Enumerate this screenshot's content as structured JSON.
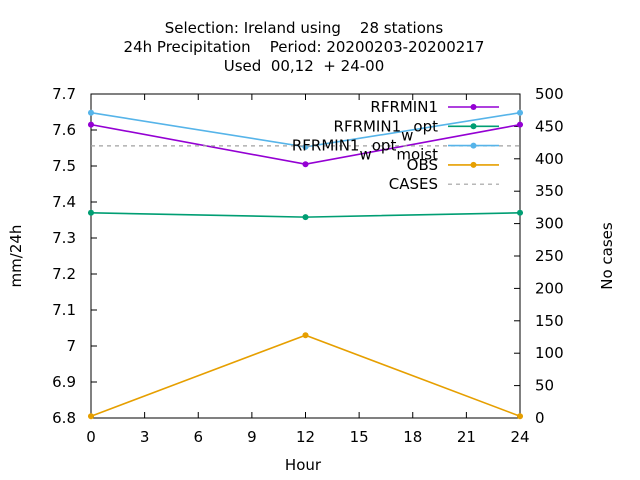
{
  "chart_data": {
    "type": "line",
    "title_lines": [
      "Selection: Ireland using    28 stations",
      "24h Precipitation    Period: 20200203-20200217",
      "Used  00,12  + 24-00"
    ],
    "xlabel": "Hour",
    "ylabel": "mm/24h",
    "y2label": "No cases",
    "xlim": [
      0,
      24
    ],
    "ylim": [
      6.8,
      7.7
    ],
    "y2lim": [
      0,
      500
    ],
    "xticks": [
      0,
      3,
      6,
      9,
      12,
      15,
      18,
      21,
      24
    ],
    "yticks": [
      "6.8",
      "6.9",
      "7",
      "7.1",
      "7.2",
      "7.3",
      "7.4",
      "7.5",
      "7.6",
      "7.7"
    ],
    "y2ticks": [
      0,
      50,
      100,
      150,
      200,
      250,
      300,
      350,
      400,
      450,
      500
    ],
    "grid": false,
    "legend_position": "top-right",
    "series": [
      {
        "name": "RFRMIN1",
        "legend_label": "RFRMIN1",
        "color": "#9400d3",
        "axis": "y",
        "marker": true,
        "x": [
          0,
          12,
          24
        ],
        "y": [
          7.615,
          7.505,
          7.615
        ]
      },
      {
        "name": "RFRMIN1_w_opt",
        "legend_label": "RFRMIN1_w_opt",
        "color": "#009e73",
        "axis": "y",
        "marker": true,
        "x": [
          0,
          12,
          24
        ],
        "y": [
          7.37,
          7.358,
          7.37
        ]
      },
      {
        "name": "RFRMIN1_w_opt_moist",
        "legend_label": "RFRMIN1_w_opt_moist",
        "color": "#56b4e9",
        "axis": "y",
        "marker": true,
        "x": [
          0,
          12,
          24
        ],
        "y": [
          7.648,
          7.553,
          7.648
        ]
      },
      {
        "name": "OBS",
        "legend_label": "OBS",
        "color": "#e69f00",
        "axis": "y",
        "marker": true,
        "x": [
          0,
          12,
          24
        ],
        "y": [
          6.805,
          7.03,
          6.805
        ]
      },
      {
        "name": "CASES",
        "legend_label": "CASES",
        "color": "#a0a0a0",
        "axis": "y2",
        "marker": false,
        "dashed": true,
        "x": [
          0,
          12,
          24
        ],
        "y": [
          420,
          420,
          420
        ]
      }
    ]
  }
}
